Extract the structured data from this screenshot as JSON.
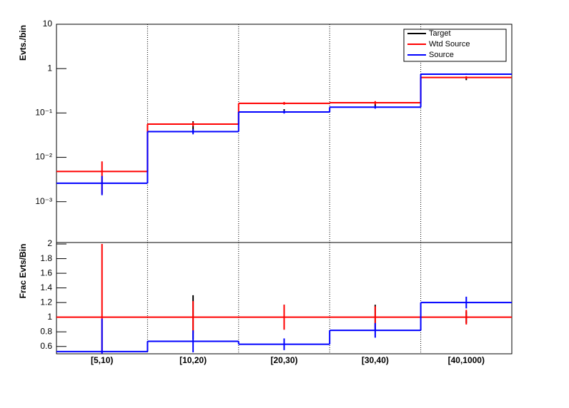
{
  "chart_data": [
    {
      "type": "step",
      "y_label": "Evts./bin",
      "log_scale": true,
      "categories": [
        "[5,10)",
        "[10,20)",
        "[20,30)",
        "[30,40)",
        "[40,1000)"
      ],
      "ylim": [
        0.00012,
        10
      ],
      "yticks": [
        {
          "value": 0.001,
          "label": "10⁻³"
        },
        {
          "value": 0.01,
          "label": "10⁻²"
        },
        {
          "value": 0.1,
          "label": "10⁻¹"
        },
        1,
        10
      ],
      "legend": "top-right",
      "series": [
        {
          "name": "Target",
          "color": "#000000",
          "values": [
            null,
            0.05,
            0.11,
            0.16,
            0.6
          ],
          "errors": [
            null,
            0.015,
            0.012,
            0.02,
            0.05
          ]
        },
        {
          "name": "Wtd Source",
          "color": "#ff0000",
          "values": [
            0.0048,
            0.056,
            0.165,
            0.17,
            0.63
          ],
          "errors": [
            0.0033,
            0.006,
            0.012,
            0.015,
            0.04
          ]
        },
        {
          "name": "Source",
          "color": "#0000ff",
          "values": [
            0.0026,
            0.038,
            0.105,
            0.135,
            0.75
          ],
          "errors": [
            0.0012,
            0.005,
            0.008,
            0.01,
            0.03
          ]
        }
      ]
    },
    {
      "type": "step",
      "y_label": "Frac Evts/Bin",
      "log_scale": false,
      "categories": [
        "[5,10)",
        "[10,20)",
        "[20,30)",
        "[30,40)",
        "[40,1000)"
      ],
      "ylim": [
        0.5,
        2.02
      ],
      "yticks": [
        0.6,
        0.8,
        1,
        1.2,
        1.4,
        1.6,
        1.8,
        2
      ],
      "series": [
        {
          "color": "#000000",
          "values": [
            null,
            1.0,
            1.0,
            1.0,
            1.0
          ],
          "errors": [
            null,
            0.3,
            0.17,
            0.17,
            0.08
          ]
        },
        {
          "color": "#ff0000",
          "values": [
            1,
            1,
            1,
            1,
            1
          ],
          "errors": [
            1.0,
            0.22,
            0.17,
            0.15,
            0.1
          ]
        },
        {
          "color": "#0000ff",
          "values": [
            0.53,
            0.67,
            0.63,
            0.82,
            1.2
          ],
          "errors": [
            0.45,
            0.15,
            0.08,
            0.1,
            0.08
          ]
        }
      ]
    }
  ]
}
